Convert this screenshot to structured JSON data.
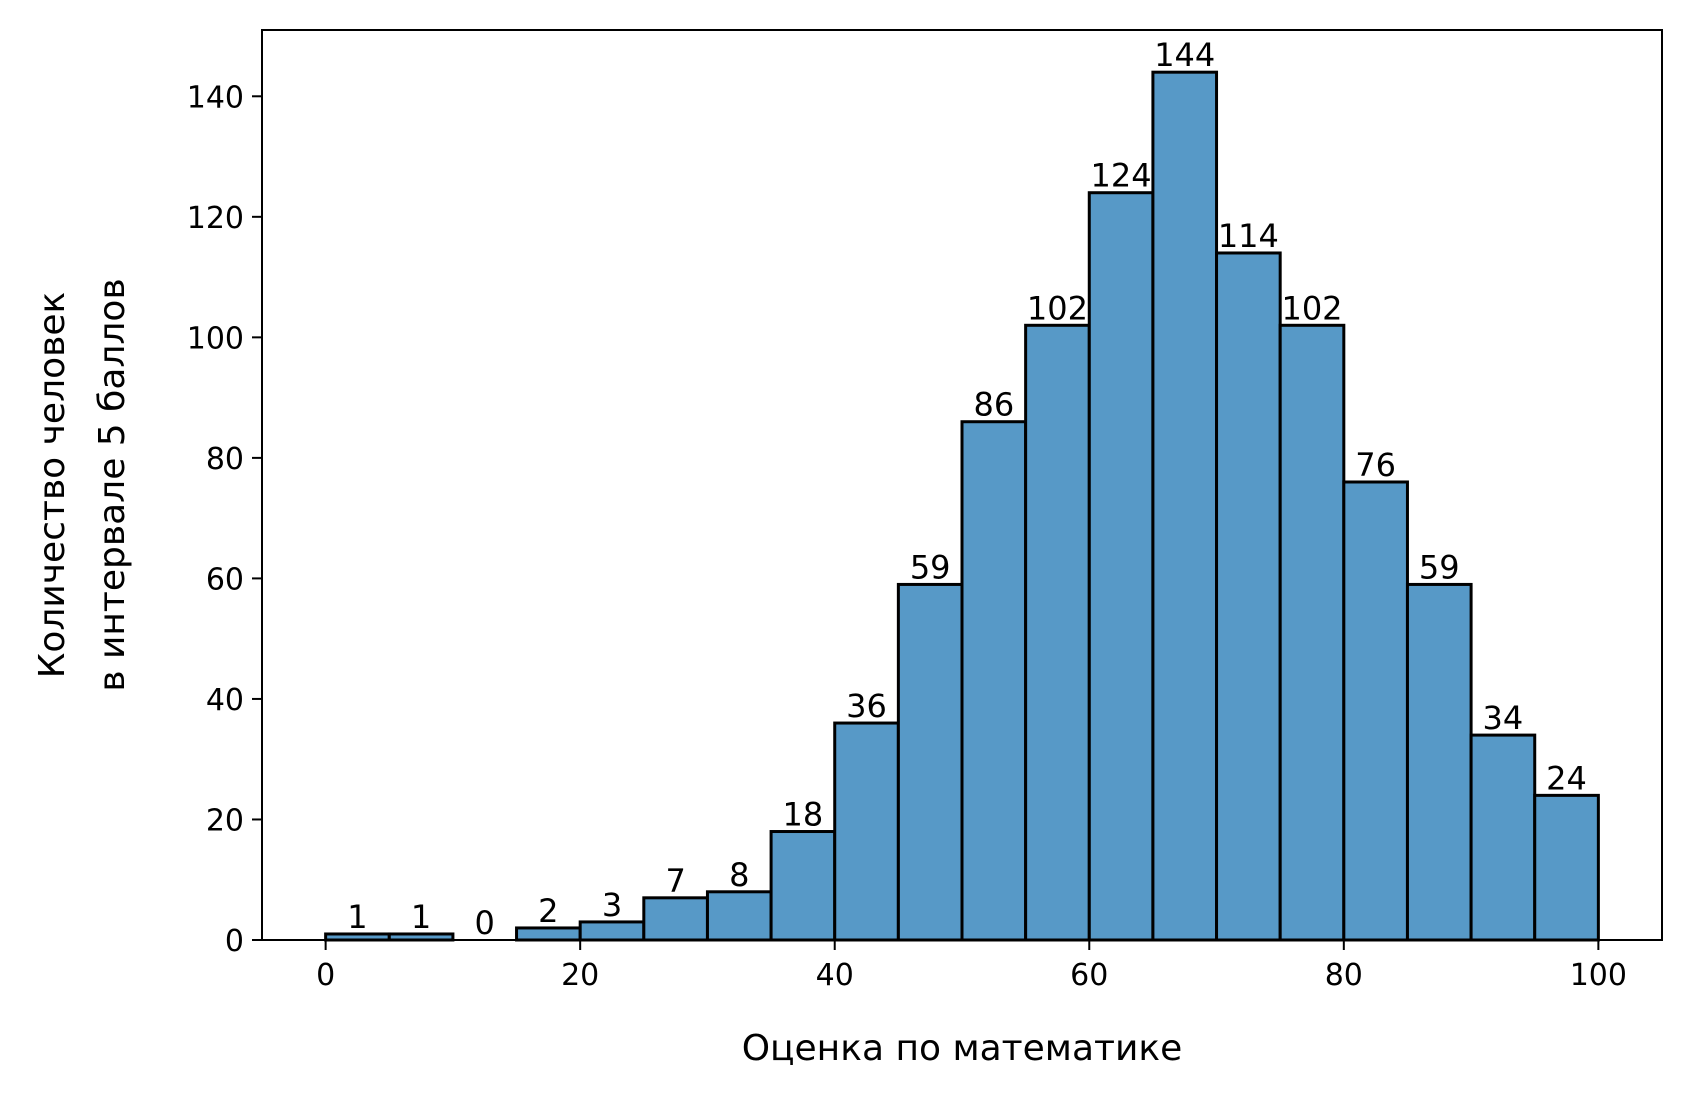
{
  "chart_data": {
    "type": "bar",
    "subtype": "histogram",
    "bin_width": 5,
    "bins": [
      {
        "start": 0,
        "end": 5,
        "value": 1
      },
      {
        "start": 5,
        "end": 10,
        "value": 1
      },
      {
        "start": 10,
        "end": 15,
        "value": 0
      },
      {
        "start": 15,
        "end": 20,
        "value": 2
      },
      {
        "start": 20,
        "end": 25,
        "value": 3
      },
      {
        "start": 25,
        "end": 30,
        "value": 7
      },
      {
        "start": 30,
        "end": 35,
        "value": 8
      },
      {
        "start": 35,
        "end": 40,
        "value": 18
      },
      {
        "start": 40,
        "end": 45,
        "value": 36
      },
      {
        "start": 45,
        "end": 50,
        "value": 59
      },
      {
        "start": 50,
        "end": 55,
        "value": 86
      },
      {
        "start": 55,
        "end": 60,
        "value": 102
      },
      {
        "start": 60,
        "end": 65,
        "value": 124
      },
      {
        "start": 65,
        "end": 70,
        "value": 144
      },
      {
        "start": 70,
        "end": 75,
        "value": 114
      },
      {
        "start": 75,
        "end": 80,
        "value": 102
      },
      {
        "start": 80,
        "end": 85,
        "value": 76
      },
      {
        "start": 85,
        "end": 90,
        "value": 59
      },
      {
        "start": 90,
        "end": 95,
        "value": 34
      },
      {
        "start": 95,
        "end": 100,
        "value": 24
      }
    ],
    "xlabel": "Оценка по математике",
    "ylabel_lines": [
      "Количество человек",
      "в интервале 5 баллов"
    ],
    "xlim": [
      -5,
      105
    ],
    "ylim": [
      0,
      151
    ],
    "xticks": [
      0,
      20,
      40,
      60,
      80,
      100
    ],
    "yticks": [
      0,
      20,
      40,
      60,
      80,
      100,
      120,
      140
    ],
    "grid": false,
    "legend": "none",
    "bar_color": "#5799c7",
    "edge_color": "#000000"
  }
}
